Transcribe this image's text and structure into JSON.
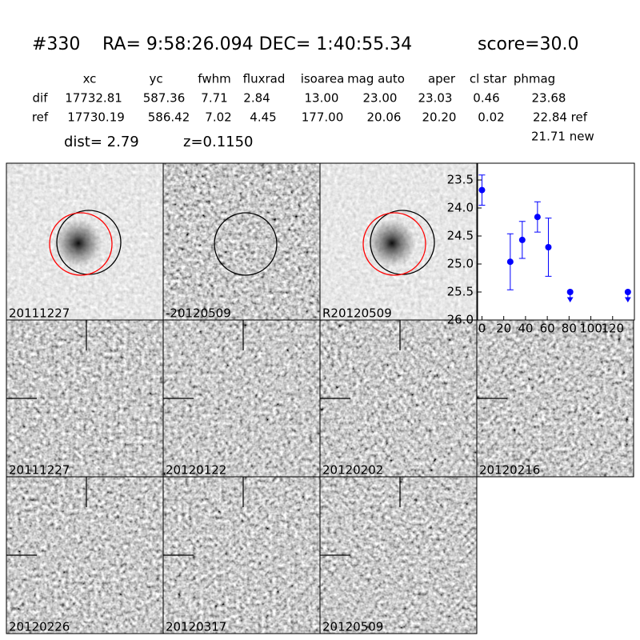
{
  "header": {
    "id": "#330",
    "coords": "RA= 9:58:26.094 DEC= 1:40:55.34",
    "score": "score=30.0"
  },
  "table": {
    "columns": [
      "xc",
      "yc",
      "fwhm",
      "fluxrad",
      "isoarea",
      "mag auto",
      "aper",
      "cl star",
      "phmag"
    ],
    "rows": [
      [
        "dif",
        "17732.81",
        "587.36",
        "7.71",
        "2.84",
        "13.00",
        "23.00",
        "23.03",
        "0.46",
        "23.68"
      ],
      [
        "ref",
        "17730.19",
        "586.42",
        "7.02",
        "4.45",
        "177.00",
        "20.06",
        "20.20",
        "0.02",
        "22.84 ref"
      ]
    ],
    "extra": "21.71 new",
    "dist": "dist=  2.79",
    "z": "z=0.1150"
  },
  "panels": {
    "top": [
      "20111227",
      "-20120509",
      "R20120509"
    ],
    "epochs": [
      "20111227",
      "20120122",
      "20120202",
      "20120216",
      "20120226",
      "20120317",
      "20120509"
    ]
  },
  "chart_data": {
    "type": "errorbar",
    "xlim": [
      -4,
      140
    ],
    "ylim": [
      23.2,
      26.0
    ],
    "invert_y": true,
    "xticks": [
      0,
      20,
      40,
      60,
      80,
      100,
      120
    ],
    "yticks": [
      23.5,
      {
        "value": 24,
        "label": "24.0"
      },
      24.5,
      {
        "value": 25,
        "label": "25.0"
      },
      25.5,
      {
        "value": 26,
        "label": "26.0"
      }
    ],
    "series": [
      {
        "color": "#0000ff",
        "x": [
          0,
          26,
          37,
          51,
          61
        ],
        "values": [
          23.68,
          24.96,
          24.57,
          24.16,
          24.7
        ],
        "errors": [
          0.27,
          0.5,
          0.33,
          0.27,
          0.52
        ]
      },
      {
        "color": "#0000ff",
        "upper_limit": true,
        "x": [
          81,
          134
        ],
        "values": [
          25.5,
          25.5
        ]
      }
    ]
  }
}
